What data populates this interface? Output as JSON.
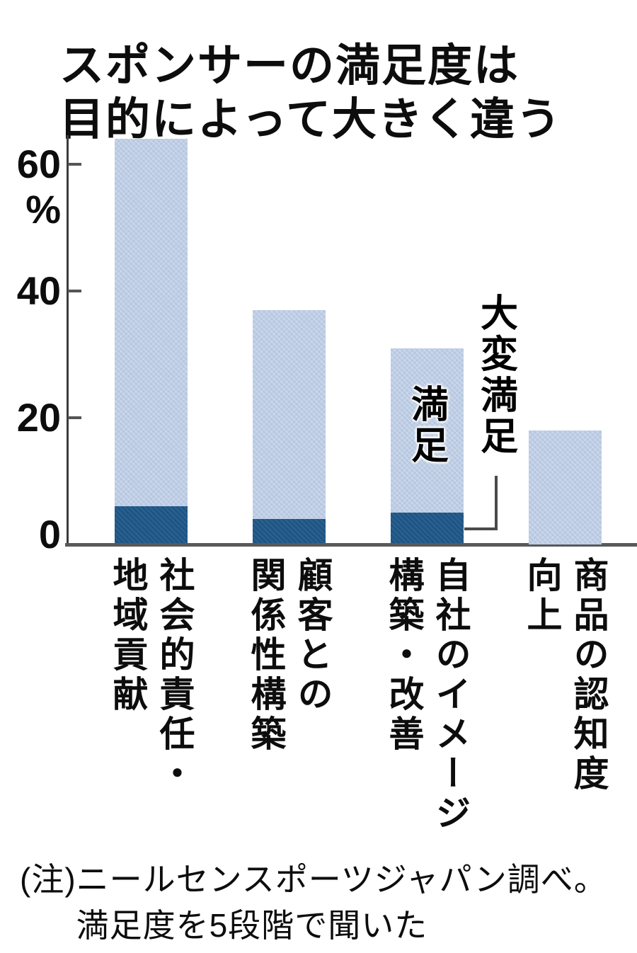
{
  "title": {
    "line1": "スポンサーの満足度は",
    "line2": "目的によって大きく違う"
  },
  "chart_data": {
    "type": "bar",
    "stacked": true,
    "orientation": "vertical",
    "unit": "%",
    "categories": [
      "社会的責任・地域貢献",
      "顧客との関係性構築",
      "自社のイメージ構築・改善",
      "商品の認知度向上"
    ],
    "category_lines": [
      [
        "社会的責任・",
        "地域貢献"
      ],
      [
        "顧客との",
        "関係性構築"
      ],
      [
        "自社のイメージ",
        "構築・改善"
      ],
      [
        "商品の認知度",
        "向上"
      ]
    ],
    "series": [
      {
        "name": "大変満足",
        "values": [
          6,
          4,
          5,
          0
        ],
        "color": "#1d5585"
      },
      {
        "name": "満足",
        "values": [
          58,
          33,
          26,
          18
        ],
        "color": "#b6c7e1"
      }
    ],
    "totals": [
      64,
      37,
      31,
      18
    ],
    "y_axis": {
      "ticks": [
        0,
        20,
        40,
        60
      ],
      "unit_label": "%",
      "range": [
        0,
        64.5
      ]
    },
    "grid": false,
    "legend": {
      "position": "on-chart",
      "annotated_bar_index": 2,
      "connector_target_series": "大変満足"
    }
  },
  "footnote": {
    "prefix": "(注)",
    "line1": "ニールセンスポーツジャパン調べ。",
    "line2": "満足度を5段階で聞いた"
  },
  "colors": {
    "satisfied_light_blue": "#b6c7e1",
    "very_satisfied_dark_blue": "#1d5585",
    "axis_gray": "#58595a",
    "text_black": "#0d0d0d"
  }
}
